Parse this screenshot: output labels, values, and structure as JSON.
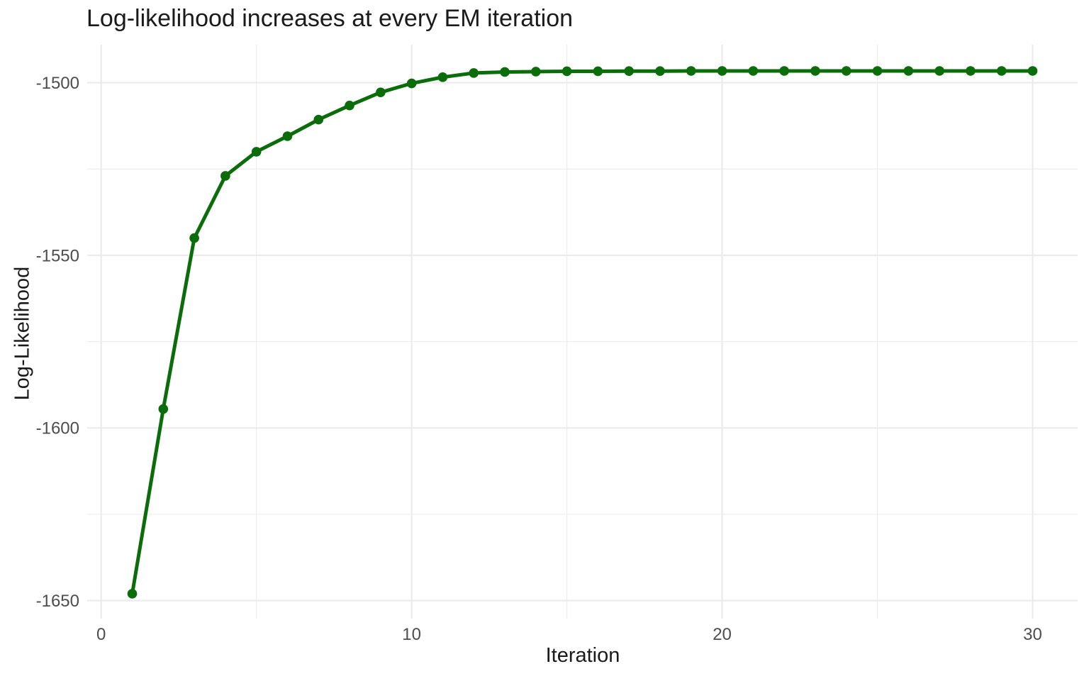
{
  "chart_data": {
    "type": "line",
    "title": "Log-likelihood increases at every EM iteration",
    "xlabel": "Iteration",
    "ylabel": "Log-Likelihood",
    "series": [
      {
        "name": "log-likelihood",
        "x": [
          1,
          2,
          3,
          4,
          5,
          6,
          7,
          8,
          9,
          10,
          11,
          12,
          13,
          14,
          15,
          16,
          17,
          18,
          19,
          20,
          21,
          22,
          23,
          24,
          25,
          26,
          27,
          28,
          29,
          30
        ],
        "y": [
          -1648.0,
          -1594.5,
          -1545.0,
          -1527.0,
          -1520.0,
          -1515.5,
          -1510.7,
          -1506.6,
          -1502.8,
          -1500.2,
          -1498.4,
          -1497.2,
          -1496.9,
          -1496.8,
          -1496.7,
          -1496.7,
          -1496.65,
          -1496.65,
          -1496.6,
          -1496.6,
          -1496.6,
          -1496.6,
          -1496.6,
          -1496.6,
          -1496.6,
          -1496.6,
          -1496.6,
          -1496.6,
          -1496.6,
          -1496.6
        ]
      }
    ],
    "x_ticks": {
      "major": [
        0,
        10,
        20,
        30
      ],
      "minor": [
        5,
        15,
        25
      ]
    },
    "y_ticks": {
      "major": [
        -1500,
        -1550,
        -1600,
        -1650
      ],
      "minor": [
        -1525,
        -1575,
        -1625
      ]
    },
    "x_tick_labels": [
      "0",
      "10",
      "20",
      "30"
    ],
    "y_tick_labels": [
      "-1500",
      "-1550",
      "-1600",
      "-1650"
    ],
    "xlim": [
      -0.45,
      31.45
    ],
    "ylim": [
      -1655.2,
      -1489.0
    ],
    "grid": "on",
    "legend": "none",
    "marker": "circle",
    "colors": {
      "line": "#0a6d0a",
      "point": "#0a6d0a",
      "grid": "#ebebeb",
      "tick_label": "#4d4d4d",
      "title": "#1a1a1a",
      "axis_title": "#1a1a1a",
      "background": "#ffffff"
    }
  }
}
